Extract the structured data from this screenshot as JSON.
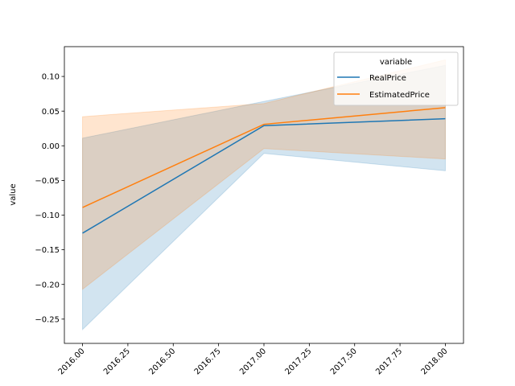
{
  "chart_data": {
    "type": "line",
    "xlabel": "",
    "ylabel": "value",
    "xlim": [
      2015.9,
      2018.1
    ],
    "ylim": [
      -0.285,
      0.143
    ],
    "x_ticks": [
      2016.0,
      2016.25,
      2016.5,
      2016.75,
      2017.0,
      2017.25,
      2017.5,
      2017.75,
      2018.0
    ],
    "x_tick_labels": [
      "2016.00",
      "2016.25",
      "2016.50",
      "2016.75",
      "2017.00",
      "2017.25",
      "2017.50",
      "2017.75",
      "2018.00"
    ],
    "y_ticks": [
      -0.25,
      -0.2,
      -0.15,
      -0.1,
      -0.05,
      0.0,
      0.05,
      0.1
    ],
    "y_tick_labels": [
      "−0.25",
      "−0.20",
      "−0.15",
      "−0.10",
      "−0.05",
      "0.00",
      "0.05",
      "0.10"
    ],
    "grid": false,
    "legend": {
      "title": "variable",
      "position": "upper-right"
    },
    "x": [
      2016,
      2017,
      2018
    ],
    "series": [
      {
        "name": "RealPrice",
        "color": "#1f77b4",
        "values": [
          -0.126,
          0.029,
          0.039
        ],
        "ci_low": [
          -0.265,
          -0.011,
          -0.036
        ],
        "ci_high": [
          0.011,
          0.064,
          0.116
        ]
      },
      {
        "name": "EstimatedPrice",
        "color": "#ff7f0e",
        "values": [
          -0.089,
          0.031,
          0.055
        ],
        "ci_low": [
          -0.207,
          -0.004,
          -0.019
        ],
        "ci_high": [
          0.042,
          0.061,
          0.124
        ]
      }
    ]
  }
}
